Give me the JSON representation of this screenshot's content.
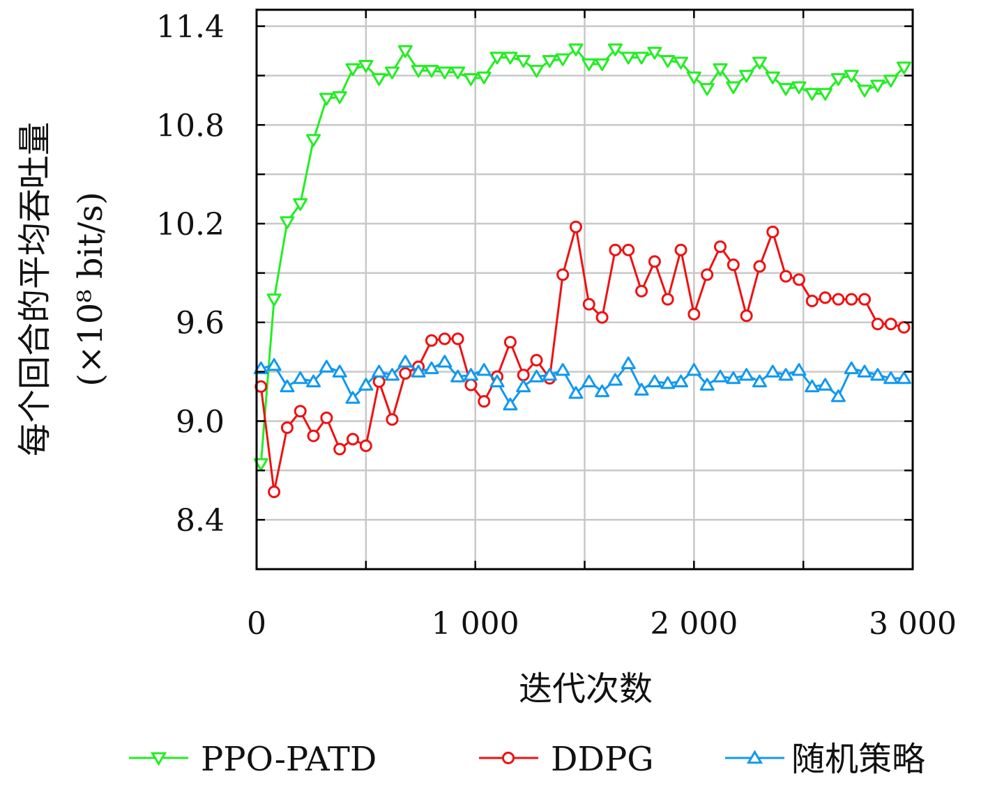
{
  "chart_data": {
    "type": "line",
    "xlabel": "迭代次数",
    "ylabel_line1": "每个回合的平均吞吐量",
    "ylabel_line2": "(×10⁸ bit/s)",
    "xlim": [
      0,
      3000
    ],
    "ylim": [
      8.1,
      11.5
    ],
    "xticks": [
      0,
      1000,
      2000,
      3000
    ],
    "xtick_labels": [
      "0",
      "1 000",
      "2 000",
      "3 000"
    ],
    "yticks": [
      8.4,
      9.0,
      9.6,
      10.2,
      10.8,
      11.4
    ],
    "ytick_labels": [
      "8.4",
      "9.0",
      "9.6",
      "10.2",
      "10.8",
      "11.4"
    ],
    "grid": true,
    "legend_position": "bottom",
    "series": [
      {
        "name": "PPO-PATD",
        "color": "#22ee22",
        "marker": "triangle-down",
        "x": [
          20,
          80,
          140,
          200,
          260,
          320,
          380,
          440,
          500,
          560,
          620,
          680,
          740,
          800,
          860,
          920,
          980,
          1040,
          1100,
          1160,
          1220,
          1280,
          1340,
          1400,
          1460,
          1520,
          1580,
          1640,
          1700,
          1760,
          1820,
          1880,
          1940,
          2000,
          2060,
          2120,
          2180,
          2240,
          2300,
          2360,
          2420,
          2480,
          2540,
          2600,
          2660,
          2720,
          2780,
          2840,
          2900,
          2960
        ],
        "y": [
          8.74,
          9.74,
          10.21,
          10.32,
          10.71,
          10.96,
          10.97,
          11.14,
          11.16,
          11.08,
          11.12,
          11.25,
          11.13,
          11.13,
          11.12,
          11.12,
          11.08,
          11.09,
          11.21,
          11.21,
          11.19,
          11.13,
          11.19,
          11.2,
          11.26,
          11.17,
          11.17,
          11.26,
          11.21,
          11.21,
          11.24,
          11.19,
          11.18,
          11.09,
          11.02,
          11.14,
          11.03,
          11.1,
          11.18,
          11.09,
          11.02,
          11.03,
          10.99,
          10.99,
          11.08,
          11.1,
          11.01,
          11.04,
          11.07,
          11.15
        ]
      },
      {
        "name": "DDPG",
        "color": "#ee1111",
        "marker": "circle",
        "x": [
          20,
          80,
          140,
          200,
          260,
          320,
          380,
          440,
          500,
          560,
          620,
          680,
          740,
          800,
          860,
          920,
          980,
          1040,
          1100,
          1160,
          1220,
          1280,
          1340,
          1400,
          1460,
          1520,
          1580,
          1640,
          1700,
          1760,
          1820,
          1880,
          1940,
          2000,
          2060,
          2120,
          2180,
          2240,
          2300,
          2360,
          2420,
          2480,
          2540,
          2600,
          2660,
          2720,
          2780,
          2840,
          2900,
          2960
        ],
        "y": [
          9.21,
          8.57,
          8.96,
          9.06,
          8.91,
          9.02,
          8.83,
          8.89,
          8.85,
          9.24,
          9.01,
          9.29,
          9.33,
          9.49,
          9.5,
          9.5,
          9.22,
          9.12,
          9.27,
          9.48,
          9.28,
          9.37,
          9.26,
          9.89,
          10.18,
          9.71,
          9.63,
          10.04,
          10.04,
          9.79,
          9.97,
          9.74,
          10.04,
          9.65,
          9.89,
          10.06,
          9.95,
          9.64,
          9.94,
          10.15,
          9.88,
          9.86,
          9.73,
          9.75,
          9.74,
          9.74,
          9.74,
          9.59,
          9.59,
          9.57
        ]
      },
      {
        "name": "随机策略",
        "color": "#1199ee",
        "marker": "triangle-up",
        "x": [
          20,
          80,
          140,
          200,
          260,
          320,
          380,
          440,
          500,
          560,
          620,
          680,
          740,
          800,
          860,
          920,
          980,
          1040,
          1100,
          1160,
          1220,
          1280,
          1340,
          1400,
          1460,
          1520,
          1580,
          1640,
          1700,
          1760,
          1820,
          1880,
          1940,
          2000,
          2060,
          2120,
          2180,
          2240,
          2300,
          2360,
          2420,
          2480,
          2540,
          2600,
          2660,
          2720,
          2780,
          2840,
          2900,
          2960
        ],
        "y": [
          9.32,
          9.34,
          9.21,
          9.26,
          9.24,
          9.33,
          9.3,
          9.14,
          9.22,
          9.3,
          9.28,
          9.36,
          9.3,
          9.32,
          9.36,
          9.27,
          9.28,
          9.31,
          9.24,
          9.1,
          9.21,
          9.27,
          9.28,
          9.31,
          9.17,
          9.24,
          9.18,
          9.25,
          9.35,
          9.19,
          9.24,
          9.23,
          9.24,
          9.31,
          9.22,
          9.27,
          9.26,
          9.28,
          9.24,
          9.3,
          9.28,
          9.31,
          9.21,
          9.22,
          9.15,
          9.32,
          9.3,
          9.28,
          9.26,
          9.26
        ]
      }
    ]
  }
}
